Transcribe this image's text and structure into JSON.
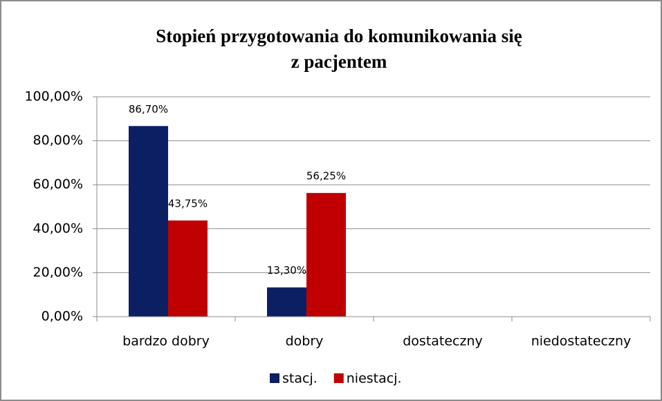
{
  "chart_data": {
    "type": "bar",
    "title": [
      "Stopień przygotowania do komunikowania się",
      "z pacjentem"
    ],
    "categories": [
      "bardzo dobry",
      "dobry",
      "dostateczny",
      "niedostateczny"
    ],
    "series": [
      {
        "name": "stacj.",
        "color": "#0d1f63",
        "values": [
          86.7,
          13.3,
          null,
          null
        ],
        "value_labels": [
          "86,70%",
          "13,30%",
          null,
          null
        ]
      },
      {
        "name": "niestacj.",
        "color": "#c00000",
        "values": [
          43.75,
          56.25,
          null,
          null
        ],
        "value_labels": [
          "43,75%",
          "56,25%",
          null,
          null
        ]
      }
    ],
    "ylim": [
      0,
      100
    ],
    "yticks": [
      {
        "value": 0,
        "label": "0,00%"
      },
      {
        "value": 20,
        "label": "20,00%"
      },
      {
        "value": 40,
        "label": "40,00%"
      },
      {
        "value": 60,
        "label": "60,00%"
      },
      {
        "value": 80,
        "label": "80,00%"
      },
      {
        "value": 100,
        "label": "100,00%"
      }
    ],
    "grid": true,
    "legend": "bottom"
  }
}
